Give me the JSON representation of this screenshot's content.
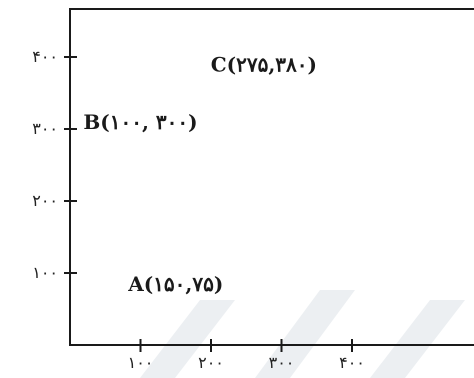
{
  "chart_data": {
    "type": "scatter",
    "title": "",
    "xlabel": "",
    "ylabel": "",
    "xlim": [
      0,
      480
    ],
    "ylim": [
      0,
      480
    ],
    "x_ticks": [
      {
        "value": 100,
        "label": "۱۰۰"
      },
      {
        "value": 200,
        "label": "۲۰۰"
      },
      {
        "value": 300,
        "label": "۳۰۰"
      },
      {
        "value": 400,
        "label": "۴۰۰"
      }
    ],
    "y_ticks": [
      {
        "value": 100,
        "label": "۱۰۰"
      },
      {
        "value": 200,
        "label": "۲۰۰"
      },
      {
        "value": 300,
        "label": "۳۰۰"
      },
      {
        "value": 400,
        "label": "۴۰۰"
      }
    ],
    "points": [
      {
        "name": "A",
        "x": 150,
        "y": 75,
        "label": "A(۱۵۰,۷۵)"
      },
      {
        "name": "B",
        "x": 100,
        "y": 300,
        "label": "B(۱۰۰, ۳۰۰)"
      },
      {
        "name": "C",
        "x": 275,
        "y": 380,
        "label": "C(۲۷۵,۳۸۰)"
      }
    ],
    "grid": false,
    "markers_visible": false
  }
}
